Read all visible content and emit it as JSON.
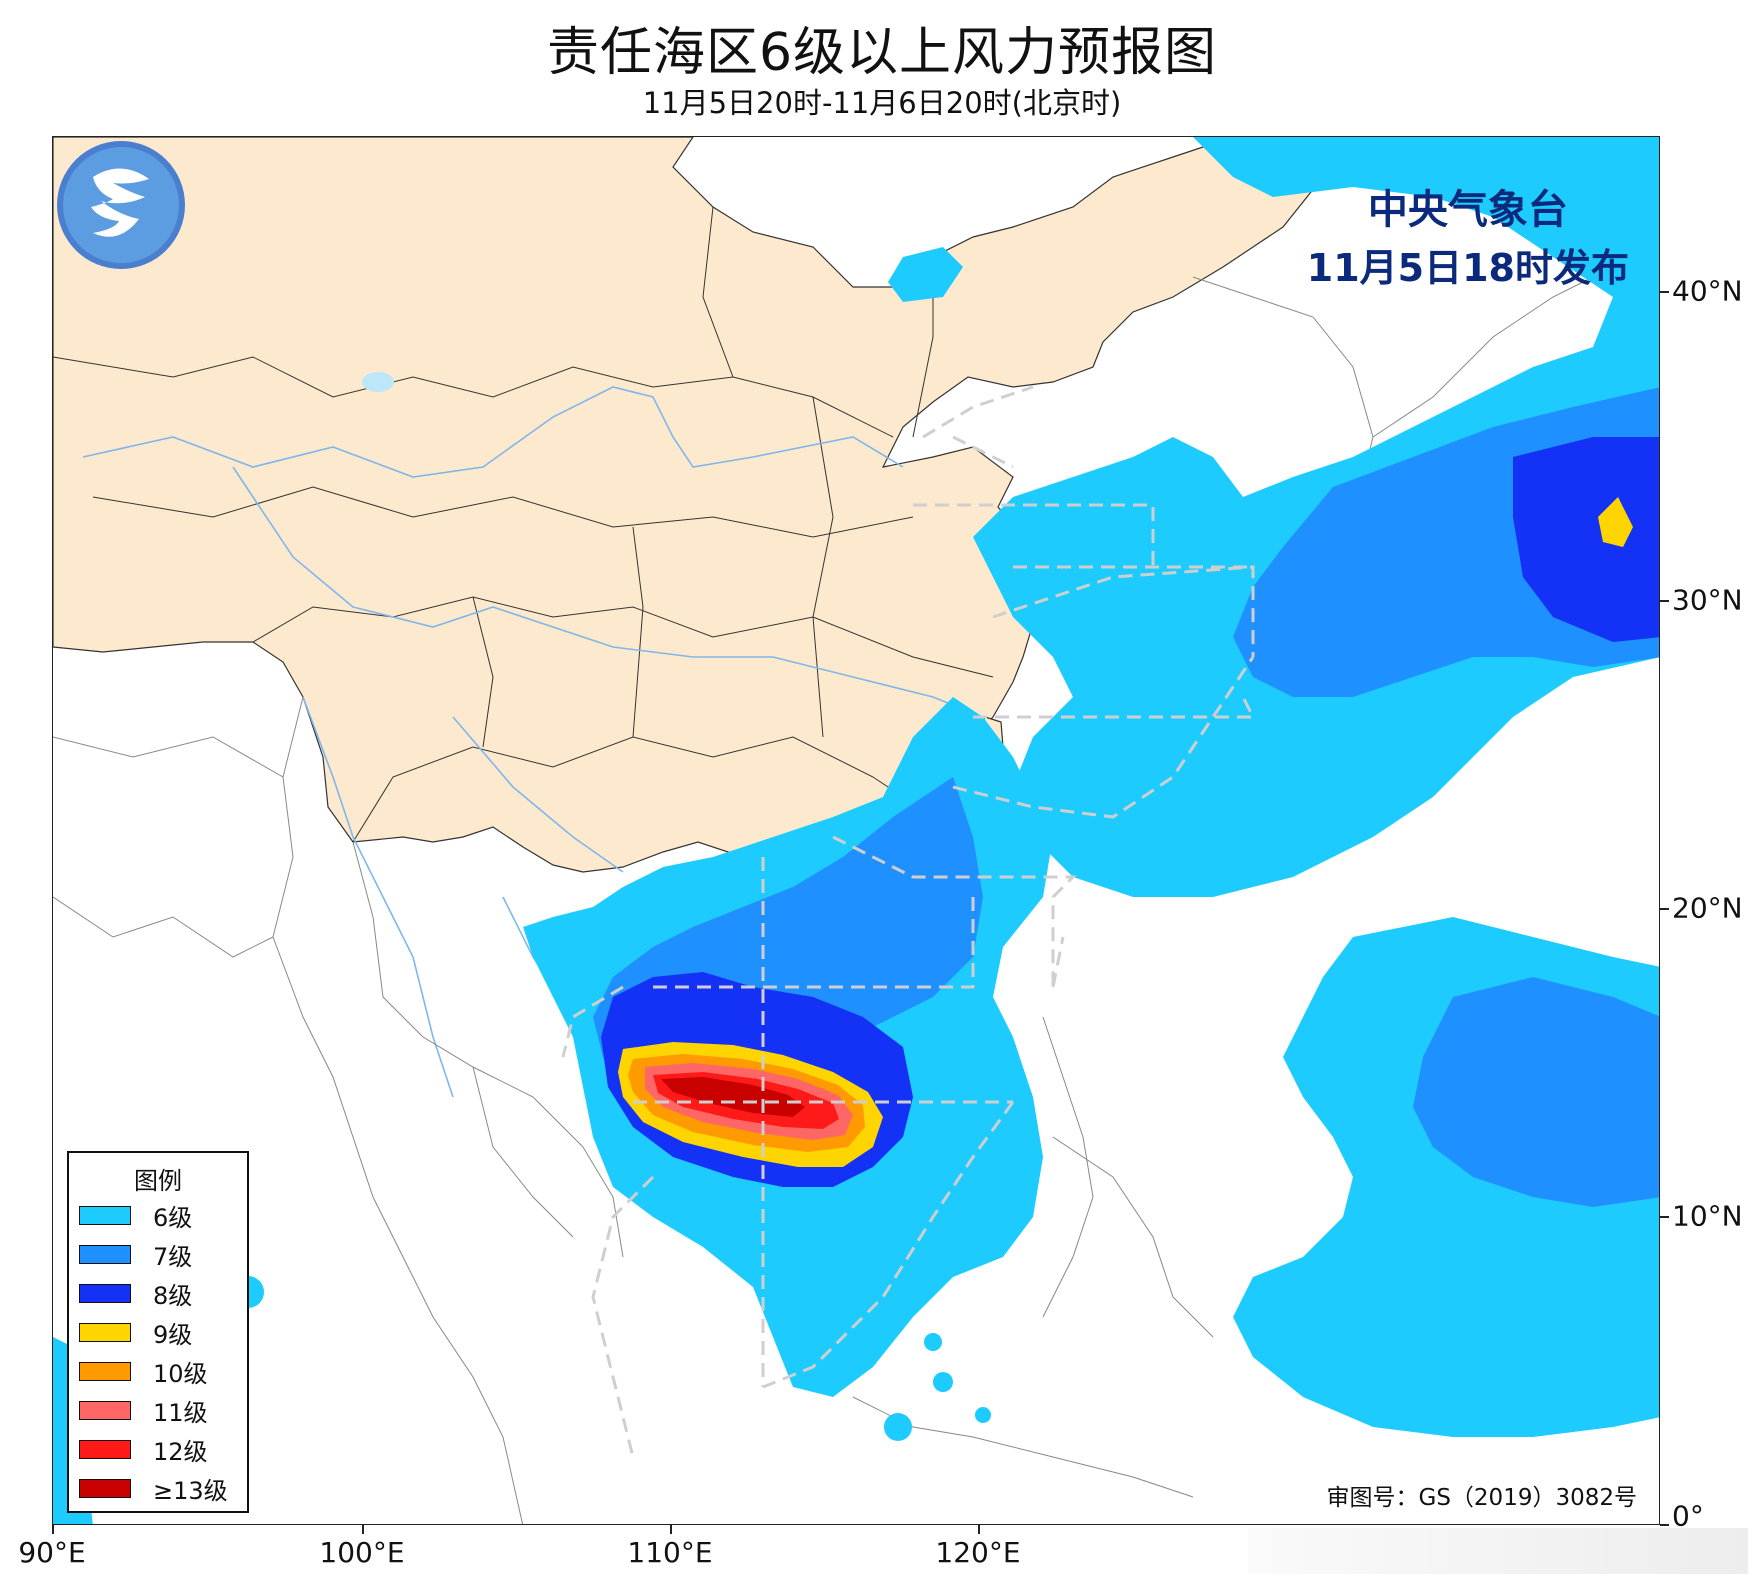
{
  "title": "责任海区6级以上风力预报图",
  "subtitle": "11月5日20时-11月6日20时(北京时)",
  "issuer": {
    "org": "中央气象台",
    "issue_time": "11月5日18时发布"
  },
  "approval": "审图号：GS（2019）3082号",
  "axes": {
    "x_ticks": [
      "90°E",
      "100°E",
      "110°E",
      "120°E"
    ],
    "y_ticks": [
      "40°N",
      "30°N",
      "20°N",
      "10°N",
      "0°"
    ]
  },
  "legend": {
    "title": "图例",
    "items": [
      {
        "label": "6级",
        "color": "#1ecbff"
      },
      {
        "label": "7级",
        "color": "#1e90ff"
      },
      {
        "label": "8级",
        "color": "#1432f5"
      },
      {
        "label": "9级",
        "color": "#ffd500"
      },
      {
        "label": "10级",
        "color": "#ff9a00"
      },
      {
        "label": "11级",
        "color": "#ff6666"
      },
      {
        "label": "12级",
        "color": "#ff1a1a"
      },
      {
        "label": "≥13级",
        "color": "#c80000"
      }
    ]
  },
  "colors": {
    "land_china": "#fde9cd",
    "sea": "#ffffff",
    "river": "#7fb7ea",
    "zone_border": "#cfcfcf"
  }
}
